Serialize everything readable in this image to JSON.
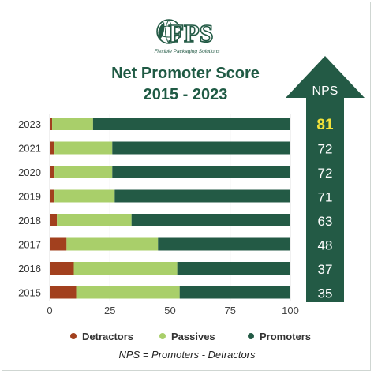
{
  "logo": {
    "mark_text": "FPS",
    "tagline": "Flexible Packaging Solutions"
  },
  "nps_header": "NPS",
  "chart_data": {
    "type": "bar",
    "orientation": "horizontal",
    "stacked": true,
    "title": "Net Promoter Score",
    "subtitle": "2015 - 2023",
    "categories": [
      "2023",
      "2021",
      "2020",
      "2019",
      "2018",
      "2017",
      "2016",
      "2015"
    ],
    "series": [
      {
        "name": "Detractors",
        "color": "#a2401e",
        "values": [
          1,
          2,
          2,
          2,
          3,
          7,
          10,
          11
        ]
      },
      {
        "name": "Passives",
        "color": "#a9cf6a",
        "values": [
          17,
          24,
          24,
          25,
          31,
          38,
          43,
          43
        ]
      },
      {
        "name": "Promoters",
        "color": "#235a45",
        "values": [
          82,
          74,
          74,
          73,
          66,
          55,
          47,
          46
        ]
      }
    ],
    "nps": [
      "81",
      "72",
      "72",
      "71",
      "63",
      "48",
      "37",
      "35"
    ],
    "nps_highlight_color": "#f2e23a",
    "xticks": [
      "0",
      "25",
      "50",
      "75",
      "100"
    ],
    "xlim": [
      0,
      100
    ],
    "legend_position": "bottom",
    "footnote": "NPS = Promoters - Detractors"
  },
  "colors": {
    "brand_green": "#235a45",
    "title_green": "#1f5a44",
    "arrow_green": "#235a45"
  }
}
